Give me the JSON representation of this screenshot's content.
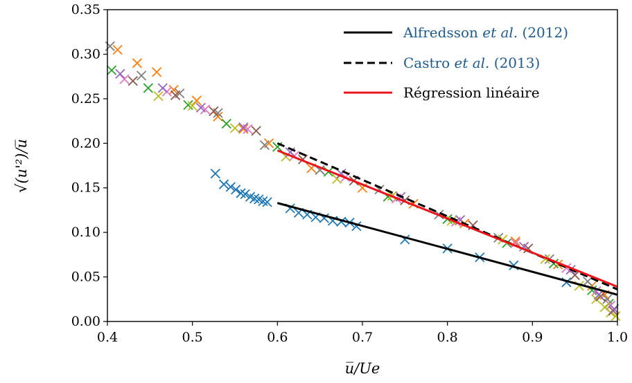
{
  "chart_data": {
    "type": "scatter",
    "xlabel": "u̅/Ue",
    "ylabel": "√(u'²)/u̅",
    "xlim": [
      0.4,
      1.0
    ],
    "ylim": [
      0.0,
      0.35
    ],
    "xticks": [
      "0.4",
      "0.5",
      "0.6",
      "0.7",
      "0.8",
      "0.9",
      "1.0"
    ],
    "yticks": [
      "0.00",
      "0.05",
      "0.10",
      "0.15",
      "0.20",
      "0.25",
      "0.30",
      "0.35"
    ],
    "grid": false,
    "legend_position": "top-right",
    "lines": [
      {
        "name": "Alfredsson et al. (2012)",
        "name_plain": "Alfredsson ",
        "name_italic": "et al.",
        "name_suffix": " (2012)",
        "style": "solid",
        "color": "#000000",
        "x": [
          0.6,
          1.0
        ],
        "y": [
          0.133,
          0.03
        ]
      },
      {
        "name": "Castro et al. (2013)",
        "name_plain": "Castro ",
        "name_italic": "et al.",
        "name_suffix": " (2013)",
        "style": "dashed",
        "color": "#000000",
        "x": [
          0.6,
          1.0
        ],
        "y": [
          0.2,
          0.036
        ]
      },
      {
        "name": "Régression linéaire",
        "name_plain": "Régression linéaire",
        "name_italic": "",
        "name_suffix": "",
        "style": "solid",
        "color": "#e8161b",
        "x": [
          0.6,
          1.0
        ],
        "y": [
          0.192,
          0.039
        ]
      }
    ],
    "series": [
      {
        "color": "#1f77b4",
        "x": [
          0.527,
          0.537,
          0.545,
          0.551,
          0.557,
          0.562,
          0.568,
          0.573,
          0.578,
          0.583,
          0.588,
          0.615,
          0.625,
          0.635,
          0.645,
          0.655,
          0.665,
          0.675,
          0.685,
          0.693,
          0.75,
          0.8,
          0.838,
          0.878,
          0.94
        ],
        "y": [
          0.166,
          0.154,
          0.151,
          0.148,
          0.144,
          0.143,
          0.14,
          0.138,
          0.137,
          0.135,
          0.134,
          0.127,
          0.122,
          0.12,
          0.117,
          0.116,
          0.113,
          0.112,
          0.111,
          0.107,
          0.092,
          0.082,
          0.072,
          0.063,
          0.044
        ]
      },
      {
        "color": "#ff7f0e",
        "x": [
          0.412,
          0.435,
          0.458,
          0.478,
          0.505,
          0.53,
          0.56,
          0.59,
          0.64,
          0.7,
          0.76,
          0.82,
          0.88,
          0.93,
          0.97,
          0.985
        ],
        "y": [
          0.305,
          0.29,
          0.28,
          0.26,
          0.248,
          0.23,
          0.216,
          0.2,
          0.172,
          0.15,
          0.132,
          0.11,
          0.09,
          0.064,
          0.04,
          0.03
        ]
      },
      {
        "color": "#2ca02c",
        "x": [
          0.405,
          0.448,
          0.495,
          0.54,
          0.6,
          0.66,
          0.73,
          0.8,
          0.87,
          0.925,
          0.97,
          0.99
        ],
        "y": [
          0.282,
          0.262,
          0.243,
          0.222,
          0.196,
          0.168,
          0.14,
          0.115,
          0.088,
          0.065,
          0.035,
          0.02
        ]
      },
      {
        "color": "#e377c2",
        "x": [
          0.42,
          0.47,
          0.515,
          0.565,
          0.62,
          0.68,
          0.74,
          0.81,
          0.88,
          0.94,
          0.975,
          0.992
        ],
        "y": [
          0.272,
          0.258,
          0.238,
          0.216,
          0.186,
          0.162,
          0.138,
          0.112,
          0.088,
          0.06,
          0.034,
          0.018
        ]
      },
      {
        "color": "#7f7f7f",
        "x": [
          0.403,
          0.44,
          0.485,
          0.53,
          0.585,
          0.65,
          0.72,
          0.79,
          0.86,
          0.92,
          0.965,
          0.988
        ],
        "y": [
          0.309,
          0.276,
          0.256,
          0.234,
          0.198,
          0.17,
          0.148,
          0.12,
          0.094,
          0.07,
          0.045,
          0.025
        ]
      },
      {
        "color": "#bcbd22",
        "x": [
          0.46,
          0.5,
          0.55,
          0.61,
          0.67,
          0.735,
          0.805,
          0.865,
          0.915,
          0.955,
          0.975,
          0.985,
          0.992,
          0.998
        ],
        "y": [
          0.253,
          0.242,
          0.217,
          0.185,
          0.16,
          0.141,
          0.113,
          0.092,
          0.07,
          0.04,
          0.025,
          0.016,
          0.01,
          0.006
        ]
      },
      {
        "color": "#8c564b",
        "x": [
          0.43,
          0.48,
          0.525,
          0.575,
          0.63,
          0.69,
          0.75,
          0.83,
          0.895,
          0.95,
          0.98,
          0.995
        ],
        "y": [
          0.27,
          0.254,
          0.236,
          0.214,
          0.182,
          0.158,
          0.136,
          0.108,
          0.082,
          0.052,
          0.028,
          0.012
        ]
      },
      {
        "color": "#9467bd",
        "x": [
          0.415,
          0.465,
          0.51,
          0.56,
          0.615,
          0.675,
          0.745,
          0.815,
          0.89,
          0.945,
          0.978,
          0.996
        ],
        "y": [
          0.278,
          0.262,
          0.24,
          0.218,
          0.19,
          0.166,
          0.14,
          0.114,
          0.084,
          0.058,
          0.03,
          0.014
        ]
      }
    ]
  }
}
